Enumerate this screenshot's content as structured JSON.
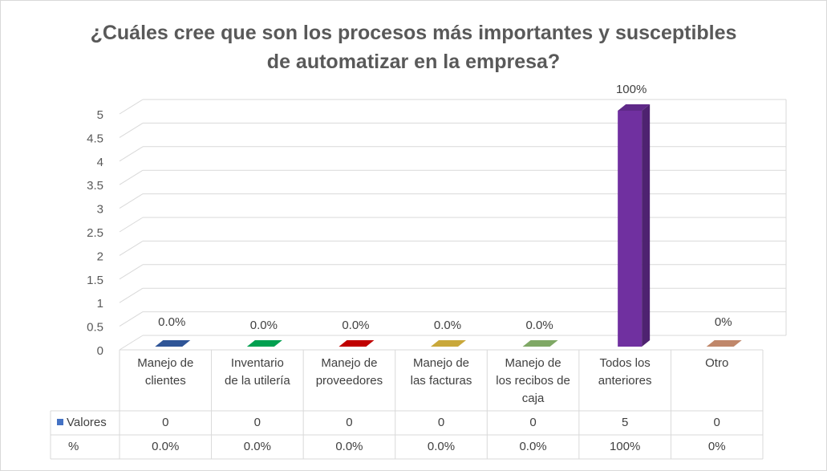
{
  "chart_data": {
    "type": "bar",
    "title_lines": [
      "¿Cuáles cree que son los procesos más importantes y susceptibles",
      "de automatizar en la empresa?"
    ],
    "categories": [
      [
        "Manejo de",
        "clientes"
      ],
      [
        "Inventario",
        "de la utilería"
      ],
      [
        "Manejo de",
        "proveedores"
      ],
      [
        "Manejo de",
        "las facturas"
      ],
      [
        "Manejo de",
        "los recibos de",
        "caja"
      ],
      [
        "Todos los",
        "anteriores"
      ],
      [
        "Otro"
      ]
    ],
    "series": [
      {
        "name": "Valores",
        "values": [
          0,
          0,
          0,
          0,
          0,
          5,
          0
        ]
      }
    ],
    "percent_row_label": "%",
    "percentages": [
      "0.0%",
      "0.0%",
      "0.0%",
      "0.0%",
      "0.0%",
      "100%",
      "0%"
    ],
    "data_labels": [
      "0.0%",
      "0.0%",
      "0.0%",
      "0.0%",
      "0.0%",
      "100%",
      "0%"
    ],
    "bar_colors": [
      "#2f5597",
      "#00a050",
      "#c00000",
      "#c9a83a",
      "#7fa865",
      "#7030a0",
      "#c0876a"
    ],
    "legend_color": "#4472c4",
    "y_ticks": [
      "0",
      "0.5",
      "1",
      "1.5",
      "2",
      "2.5",
      "3",
      "3.5",
      "4",
      "4.5",
      "5"
    ],
    "ylim": [
      0,
      5
    ],
    "grid": true,
    "legend": "data-table"
  }
}
